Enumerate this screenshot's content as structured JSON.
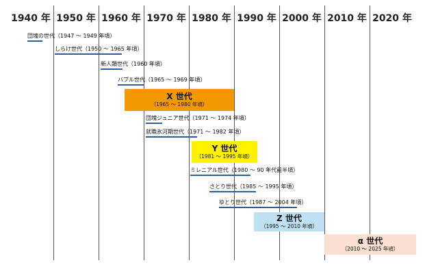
{
  "decades": [
    "1940 年",
    "1950 年",
    "1960 年",
    "1970 年",
    "1980 年",
    "1990 年",
    "2000 年",
    "2010 年",
    "2020 年"
  ],
  "generations": [
    {
      "label": "団塊の世代（1947 〜 1949 年頃）"
    },
    {
      "label": "しらけ世代（1950 〜 1965 年頃）"
    },
    {
      "label": "新人類世代（1960 年頃）"
    },
    {
      "label": "バブル世代（1965 〜 1969 年頃）"
    },
    {
      "label": "団塊ジュニア世代（1971 〜 1974 年頃）"
    },
    {
      "label": "就職氷河期世代（1971 〜 1982 年頃）"
    },
    {
      "label": "ミレニアル世代（1980 〜 90 年代前半頃）"
    },
    {
      "label": "さとり世代（1985 〜 1995 年頃）"
    },
    {
      "label": "ゆとり世代（1987 〜 2004 年頃）"
    }
  ],
  "highlight_boxes": [
    {
      "title": "X 世代",
      "range": "（1965 〜 1980 年頃）",
      "color": "#f39800"
    },
    {
      "title": "Y 世代",
      "range": "（1981 〜 1995 年頃）",
      "color": "#fff100"
    },
    {
      "title": "Z 世代",
      "range": "（1995 〜 2010 年頃）",
      "color": "#bde0f3"
    },
    {
      "title": "α 世代",
      "range": "（2010 〜 2025 年頃）",
      "color": "#fbe0d2"
    }
  ],
  "colors": {
    "underline": "#2c5f99",
    "gridline": "#555555"
  }
}
